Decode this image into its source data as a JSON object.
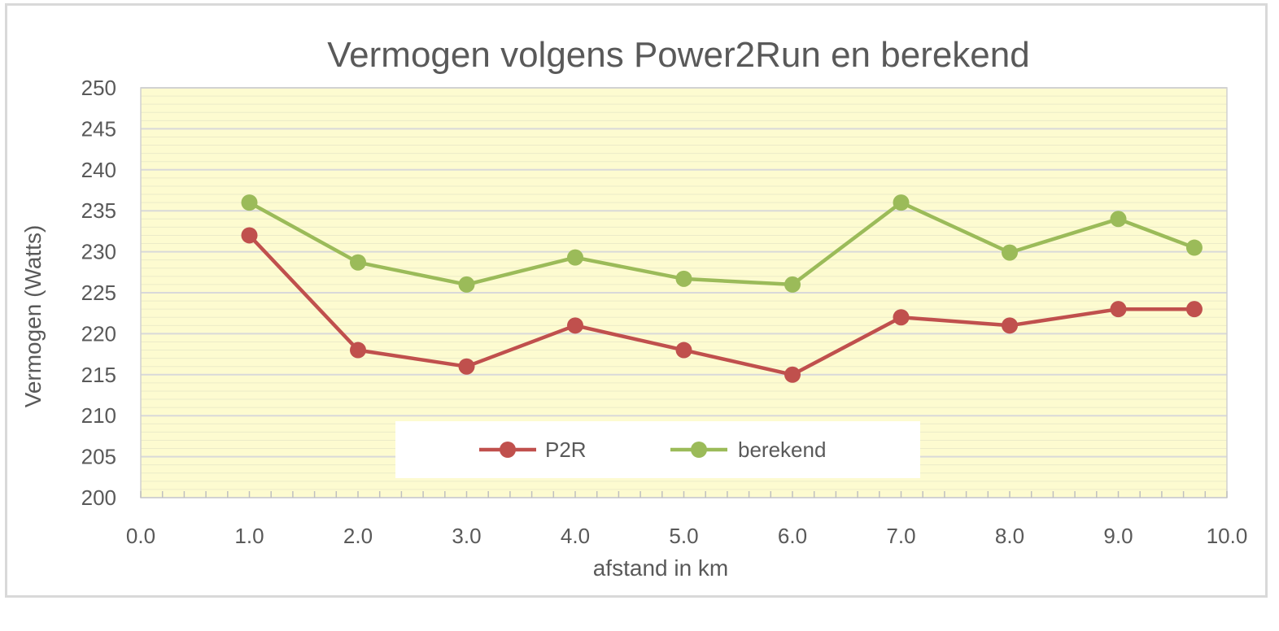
{
  "chart_data": {
    "type": "line",
    "title": "Vermogen volgens Power2Run en berekend",
    "xlabel": "afstand in km",
    "ylabel": "Vermogen (Watts)",
    "xlim": [
      0,
      10
    ],
    "ylim": [
      200,
      250
    ],
    "x_ticks": [
      "0.0",
      "1.0",
      "2.0",
      "3.0",
      "4.0",
      "5.0",
      "6.0",
      "7.0",
      "8.0",
      "9.0",
      "10.0"
    ],
    "y_ticks": [
      "200",
      "205",
      "210",
      "215",
      "220",
      "225",
      "230",
      "235",
      "240",
      "245",
      "250"
    ],
    "grid": true,
    "legend_position": "bottom-center",
    "background_color": "#fdfbd0",
    "series": [
      {
        "name": "P2R",
        "color": "#c0504d",
        "x": [
          1.0,
          2.0,
          3.0,
          4.0,
          5.0,
          6.0,
          7.0,
          8.0,
          9.0,
          9.7
        ],
        "values": [
          232,
          218,
          216,
          221,
          218,
          215,
          222,
          221,
          223,
          223
        ]
      },
      {
        "name": "berekend",
        "color": "#9bbb59",
        "x": [
          1.0,
          2.0,
          3.0,
          4.0,
          5.0,
          6.0,
          7.0,
          8.0,
          9.0,
          9.7
        ],
        "values": [
          236,
          228.7,
          226,
          229.3,
          226.7,
          226,
          236,
          229.9,
          234,
          230.5
        ]
      }
    ]
  }
}
